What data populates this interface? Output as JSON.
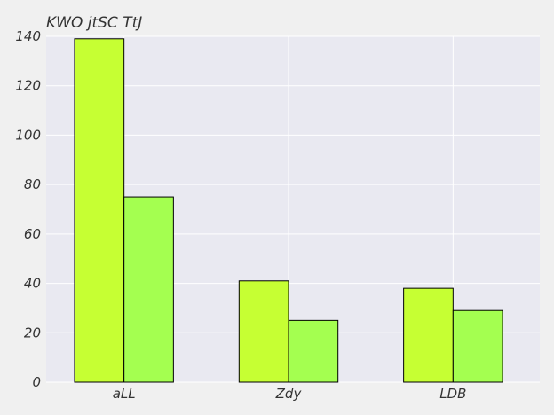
{
  "chart_data": {
    "type": "bar",
    "title": "KWO jtSC TtJ",
    "xlabel": "",
    "ylabel": "",
    "categories": [
      "aLL",
      "Zdy",
      "LDB"
    ],
    "series": [
      {
        "values": [
          139,
          41,
          38
        ],
        "color": "#c6ff33"
      },
      {
        "values": [
          75,
          25,
          29
        ],
        "color": "#a4ff50"
      }
    ],
    "ylim": [
      0,
      140
    ],
    "yticks": [
      0,
      20,
      40,
      60,
      80,
      100,
      120,
      140
    ],
    "grid": true,
    "legend": "none",
    "plot_background": "#e9e9f1",
    "figure_background": "#f0f0f0"
  }
}
